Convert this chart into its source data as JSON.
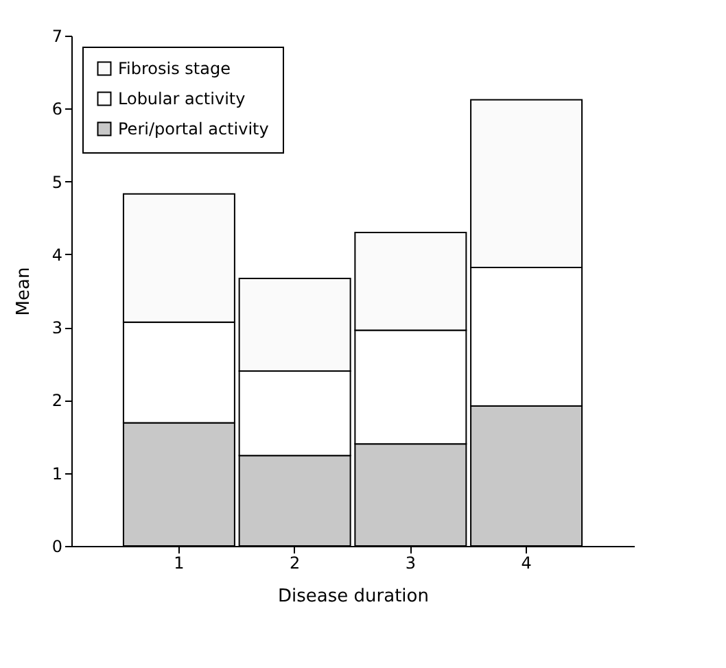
{
  "chart_data": {
    "type": "bar",
    "stacked": true,
    "xlabel": "Disease duration",
    "ylabel": "Mean",
    "categories": [
      "1",
      "2",
      "3",
      "4"
    ],
    "series": [
      {
        "name": "Peri/portal activity",
        "color": "#c8c8c8",
        "values": [
          1.69,
          1.24,
          1.4,
          1.92
        ]
      },
      {
        "name": "Lobular activity",
        "color": "#ffffff",
        "values": [
          1.38,
          1.16,
          1.56,
          1.9
        ]
      },
      {
        "name": "Fibrosis stage",
        "color": "#fafafa",
        "values": [
          1.76,
          1.27,
          1.34,
          2.3
        ]
      }
    ],
    "ylim": [
      0,
      7
    ],
    "yticks": [
      0,
      1,
      2,
      3,
      4,
      5,
      6,
      7
    ],
    "grid": false,
    "legend": "top left"
  }
}
